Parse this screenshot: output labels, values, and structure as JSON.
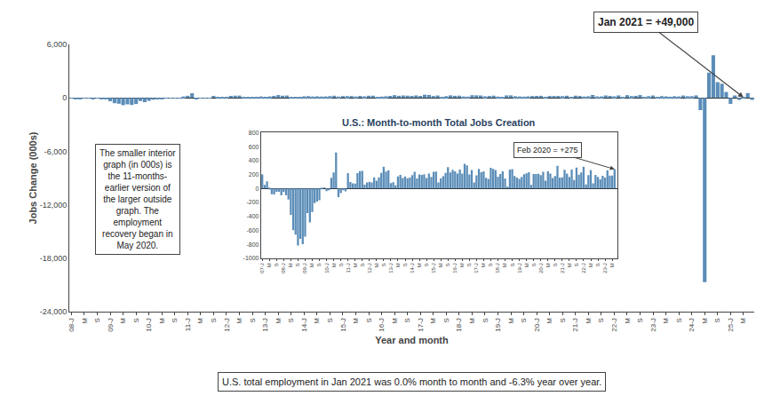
{
  "chart_data": [
    {
      "type": "bar",
      "xlabel": "Year and month",
      "ylabel": "Jobs Change (000s)",
      "categories": [
        "08-J",
        null,
        null,
        "M",
        null,
        null,
        "S",
        null,
        null,
        "09-J",
        null,
        null,
        "M",
        null,
        null,
        "S",
        null,
        null,
        "10-J",
        null,
        null,
        "M",
        null,
        null,
        "S",
        null,
        null,
        "11-J",
        null,
        null,
        "M",
        null,
        null,
        "S",
        null,
        null,
        "12-J",
        null,
        null,
        "M",
        null,
        null,
        "S",
        null,
        null,
        "13-J",
        null,
        null,
        "M",
        null,
        null,
        "S",
        null,
        null,
        "14-J",
        null,
        null,
        "M",
        null,
        null,
        "S",
        null,
        null,
        "15-J",
        null,
        null,
        "M",
        null,
        null,
        "S",
        null,
        null,
        "16-J",
        null,
        null,
        "M",
        null,
        null,
        "S",
        null,
        null,
        "17-J",
        null,
        null,
        "M",
        null,
        null,
        "S",
        null,
        null,
        "18-J",
        null,
        null,
        "M",
        null,
        null,
        "S",
        null,
        null,
        "19-J",
        null,
        null,
        "M",
        null,
        null,
        "S",
        null,
        null,
        "20-J",
        null,
        null,
        "M",
        null,
        null,
        "S",
        null,
        null,
        "21-J",
        null,
        null,
        "M",
        null,
        null,
        "S",
        null,
        null,
        "22-J",
        null,
        null,
        "M",
        null,
        null,
        "S",
        null,
        null,
        "23-J",
        null,
        null,
        "M",
        null,
        null,
        "S",
        null,
        null,
        "24-J",
        null,
        null,
        "M",
        null,
        null,
        "S",
        null,
        null,
        "25-J",
        null,
        null,
        "M",
        null,
        null
      ],
      "values": [
        -18,
        -83,
        -88,
        -49,
        -47,
        -100,
        -51,
        -100,
        -159,
        -380,
        -597,
        -661,
        -818,
        -724,
        -799,
        -692,
        -355,
        -486,
        -338,
        -212,
        -189,
        -168,
        -11,
        -1,
        -39,
        -26,
        151,
        229,
        516,
        -125,
        -66,
        -27,
        -41,
        220,
        93,
        72,
        68,
        220,
        246,
        251,
        54,
        84,
        96,
        85,
        158,
        112,
        157,
        223,
        311,
        240,
        259,
        77,
        87,
        45,
        172,
        192,
        148,
        171,
        146,
        155,
        191,
        239,
        142,
        199,
        195,
        202,
        149,
        212,
        164,
        237,
        241,
        84,
        144,
        175,
        222,
        304,
        229,
        267,
        243,
        213,
        271,
        214,
        353,
        329,
        201,
        264,
        85,
        187,
        280,
        231,
        245,
        153,
        137,
        295,
        280,
        262,
        168,
        206,
        245,
        144,
        24,
        271,
        275,
        176,
        156,
        135,
        164,
        204,
        216,
        232,
        50,
        207,
        207,
        210,
        189,
        237,
        111,
        244,
        211,
        148,
        176,
        324,
        155,
        159,
        268,
        213,
        165,
        270,
        119,
        300,
        196,
        227,
        312,
        56,
        189,
        263,
        72,
        193,
        165,
        130,
        180,
        156,
        261,
        184,
        184,
        275,
        -1373,
        -20679,
        2833,
        4781,
        1761,
        1583,
        661,
        -680,
        264,
        -227,
        49,
        536,
        -227
      ],
      "color": "#5b8db8",
      "ylim": [
        -24000,
        6000
      ],
      "yticks": [
        {
          "value": -24000,
          "label": "-24,000"
        },
        {
          "value": -18000,
          "label": "-18,000"
        },
        {
          "value": -12000,
          "label": "-12,000"
        },
        {
          "value": -6000,
          "label": "-6,000"
        },
        0,
        {
          "value": 6000,
          "label": "6,000"
        }
      ],
      "grid": false,
      "annotations": [
        {
          "text": "Jan 2021 = +49,000",
          "x": 156,
          "y": 49
        },
        {
          "text": "The smaller interior\ngraph (in 000s) is\nthe 11-months-\nearlier version of\nthe larger outside\ngraph. The\nemployment\nrecovery began in\nMay 2020."
        },
        {
          "text": "U.S. total employment in Jan 2021 was 0.0% month to month and -6.3% year over year."
        }
      ]
    },
    {
      "type": "bar",
      "title": "U.S.: Month-to-month Total Jobs Creation",
      "categories": [
        "07-J",
        null,
        null,
        "M",
        null,
        null,
        "S",
        null,
        null,
        "08-J",
        null,
        null,
        "M",
        null,
        null,
        "S",
        null,
        null,
        "09-J",
        null,
        null,
        "M",
        null,
        null,
        "S",
        null,
        null,
        "10-J",
        null,
        null,
        "M",
        null,
        null,
        "S",
        null,
        null,
        "11-J",
        null,
        null,
        "M",
        null,
        null,
        "S",
        null,
        null,
        "12-J",
        null,
        null,
        "M",
        null,
        null,
        "S",
        null,
        null,
        "13-J",
        null,
        null,
        "M",
        null,
        null,
        "S",
        null,
        null,
        "14-J",
        null,
        null,
        "M",
        null,
        null,
        "S",
        null,
        null,
        "15-J",
        null,
        null,
        "M",
        null,
        null,
        "S",
        null,
        null,
        "16-J",
        null,
        null,
        "M",
        null,
        null,
        "S",
        null,
        null,
        "17-J",
        null,
        null,
        "M",
        null,
        null,
        "S",
        null,
        null,
        "18-J",
        null,
        null,
        "M",
        null,
        null,
        "S",
        null,
        null,
        "19-J",
        null,
        null,
        "M",
        null,
        null,
        "S",
        null,
        null,
        "20-J",
        null,
        null,
        "M",
        null,
        null,
        "S",
        null,
        null,
        "21-J",
        null,
        null,
        "M",
        null,
        null,
        "S",
        null,
        null,
        "22-J",
        null,
        null,
        "M",
        null,
        null,
        "S",
        null,
        null,
        "23-J",
        null,
        null,
        "M",
        null
      ],
      "values": [
        200,
        50,
        100,
        -18,
        -83,
        -88,
        -49,
        -47,
        -100,
        -51,
        -100,
        -159,
        -380,
        -597,
        -661,
        -818,
        -724,
        -799,
        -692,
        -355,
        -486,
        -338,
        -212,
        -189,
        -168,
        -11,
        -1,
        -39,
        -26,
        151,
        229,
        516,
        -125,
        -66,
        -27,
        -41,
        220,
        93,
        72,
        68,
        220,
        246,
        251,
        54,
        84,
        96,
        85,
        158,
        112,
        157,
        223,
        311,
        240,
        259,
        77,
        87,
        45,
        172,
        192,
        148,
        171,
        146,
        155,
        191,
        239,
        142,
        199,
        195,
        202,
        149,
        212,
        164,
        237,
        241,
        84,
        144,
        175,
        222,
        304,
        229,
        267,
        243,
        213,
        271,
        214,
        353,
        329,
        201,
        264,
        85,
        187,
        280,
        231,
        245,
        153,
        137,
        295,
        280,
        262,
        168,
        206,
        245,
        144,
        24,
        271,
        275,
        176,
        156,
        135,
        164,
        204,
        216,
        232,
        50,
        207,
        207,
        210,
        189,
        237,
        111,
        244,
        211,
        148,
        176,
        324,
        155,
        159,
        268,
        213,
        165,
        270,
        119,
        300,
        196,
        227,
        312,
        56,
        189,
        263,
        72,
        193,
        165,
        130,
        180,
        156,
        261,
        184,
        184,
        275
      ],
      "color": "#5b8db8",
      "ylim": [
        -1000,
        800
      ],
      "yticks": [
        -1000,
        -800,
        -600,
        -400,
        -200,
        0,
        200,
        400,
        600,
        800
      ],
      "grid": false,
      "annotations": [
        {
          "text": "Feb 2020 = +275",
          "x": 148,
          "y": 275
        }
      ]
    }
  ]
}
